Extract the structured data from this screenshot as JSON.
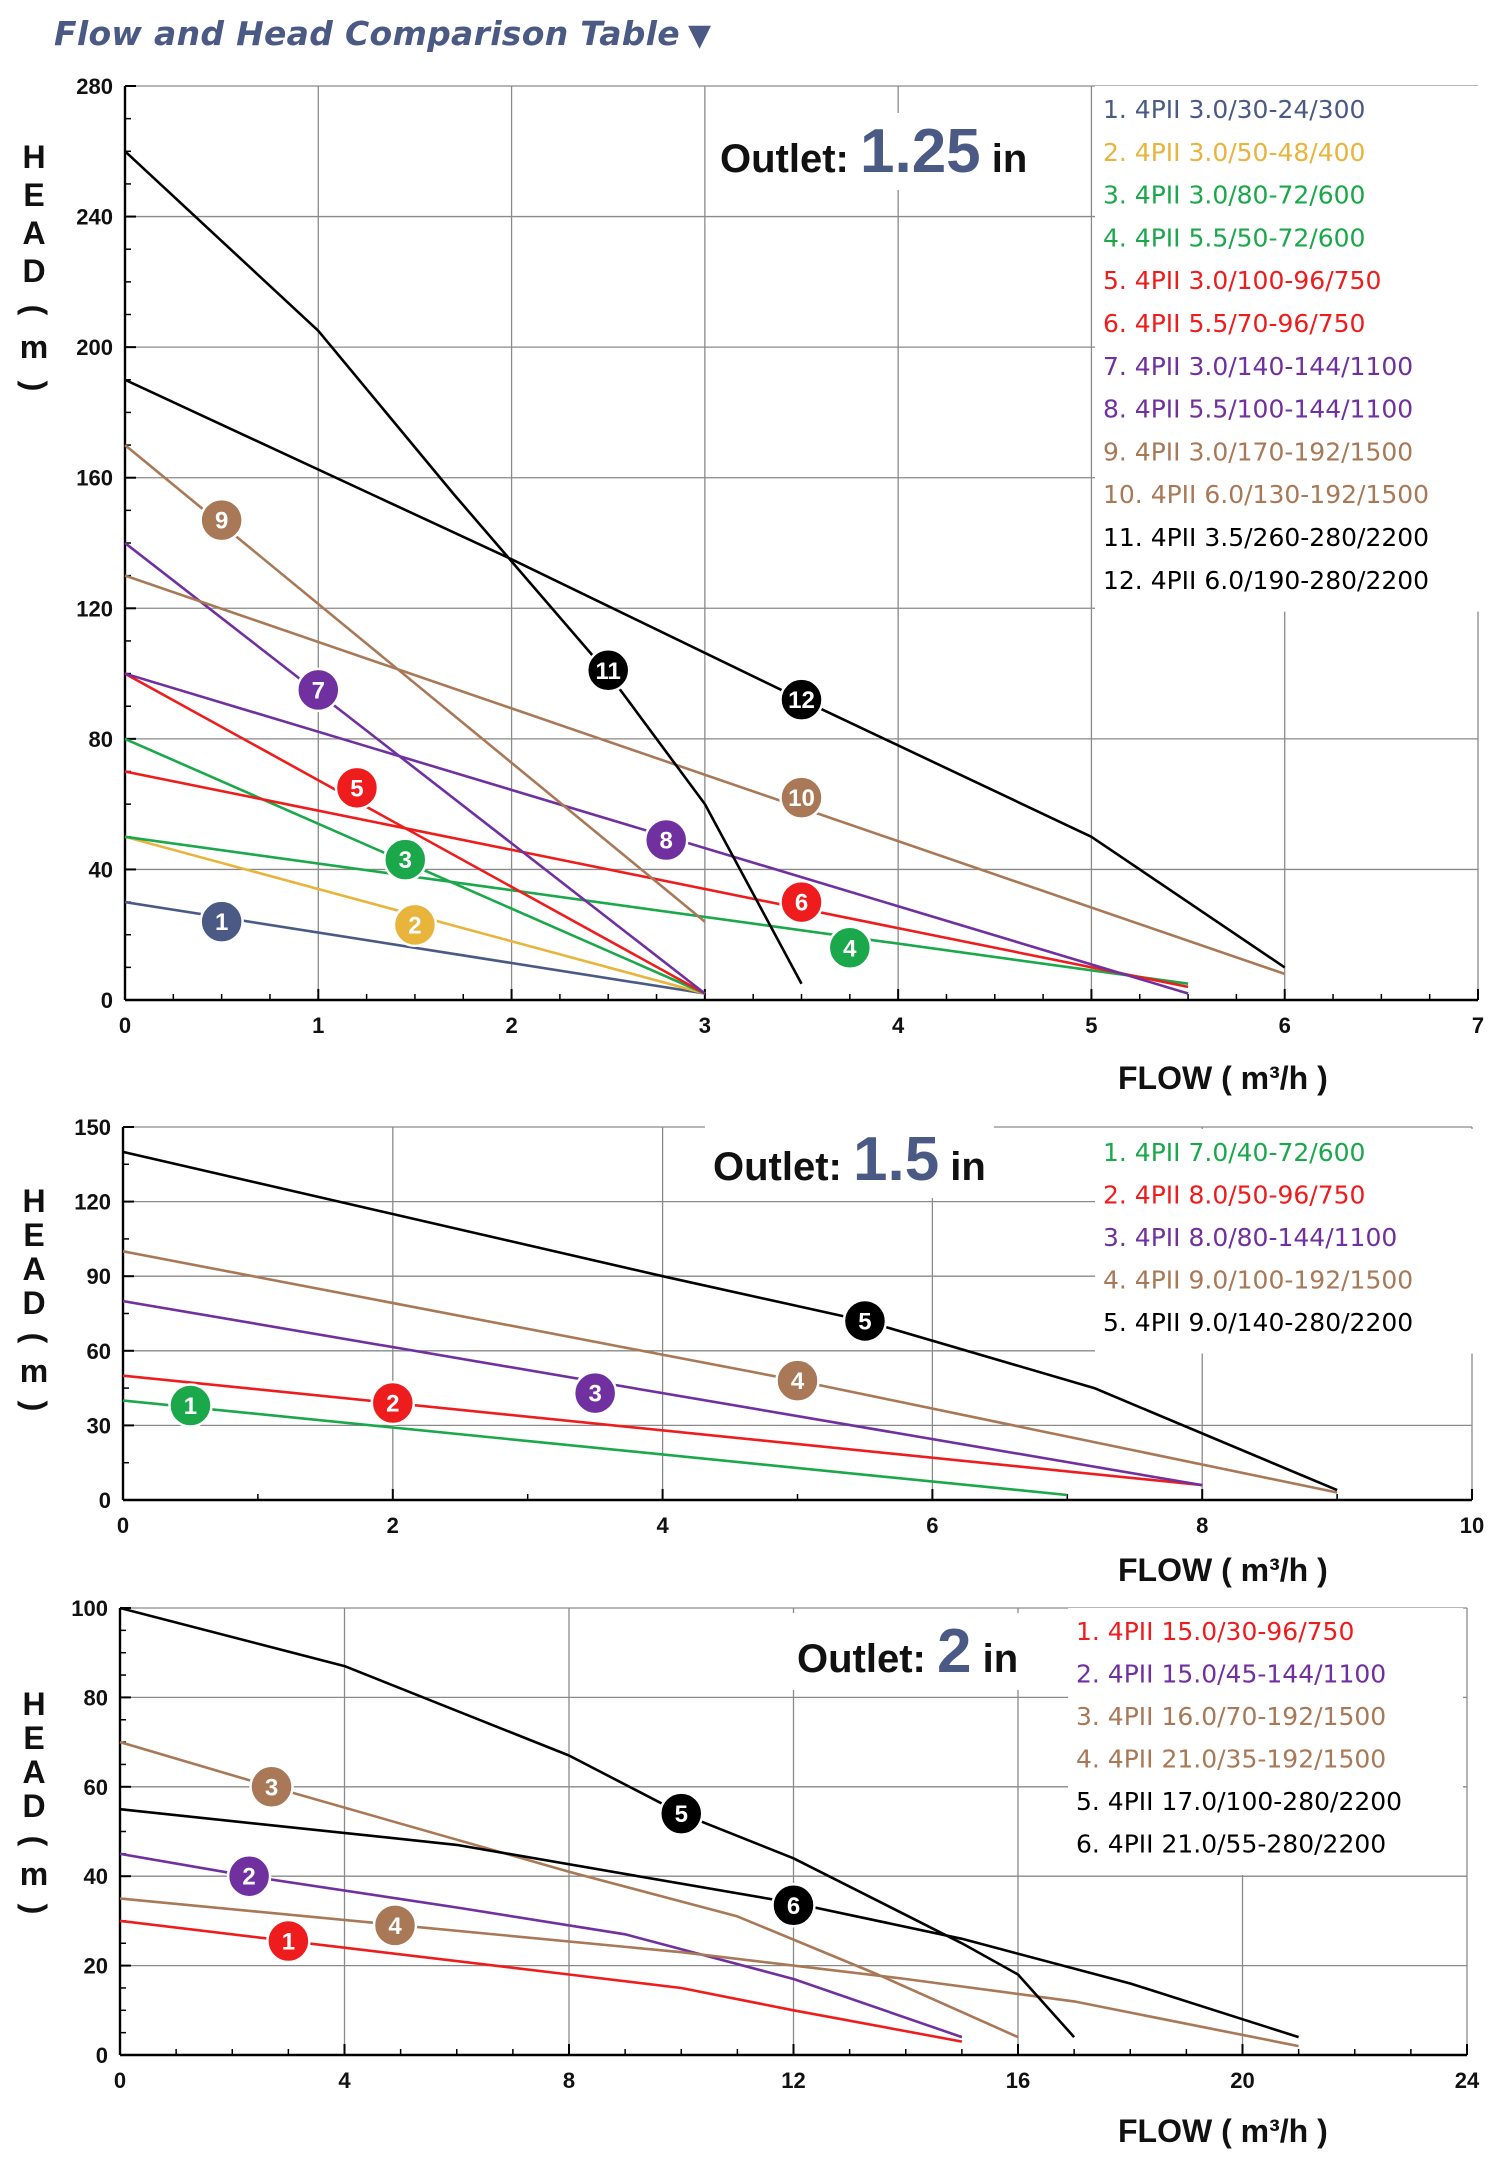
{
  "title": "Flow and Head Comparison Table",
  "title_arrow": "▼",
  "colors": {
    "title": "#4a5a85",
    "navy": "#4a5a85",
    "gold": "#e8b43c",
    "green": "#1aa84a",
    "red": "#ee1c1c",
    "purple": "#7030a0",
    "brown": "#a97856",
    "black": "#000000"
  },
  "chart_data": [
    {
      "type": "line",
      "outlet_label": "Outlet:",
      "outlet_size": "1.25",
      "outlet_unit": "in",
      "ylabel": "HEAD ( m )",
      "xlabel": "FLOW ( m³/h )",
      "xlim": [
        0,
        7
      ],
      "ylim": [
        0,
        280
      ],
      "xticks": [
        0,
        1,
        2,
        3,
        4,
        5,
        6,
        7
      ],
      "yticks": [
        0,
        40,
        80,
        120,
        160,
        200,
        240,
        280
      ],
      "legend_position": "top-right",
      "series": [
        {
          "num": "1",
          "label": "1.  4PII 3.0/30-24/300",
          "color": "#4a5a85",
          "points": [
            [
              0,
              30
            ],
            [
              3,
              2
            ]
          ],
          "marker": [
            0.5,
            24
          ]
        },
        {
          "num": "2",
          "label": "2.  4PII 3.0/50-48/400",
          "color": "#e8b43c",
          "points": [
            [
              0,
              50
            ],
            [
              3,
              2
            ]
          ],
          "marker": [
            1.5,
            23
          ]
        },
        {
          "num": "3",
          "label": "3.  4PII 3.0/80-72/600",
          "color": "#1aa84a",
          "points": [
            [
              0,
              80
            ],
            [
              3,
              2
            ]
          ],
          "marker": [
            1.45,
            43
          ]
        },
        {
          "num": "4",
          "label": "4.  4PII 5.5/50-72/600",
          "color": "#1aa84a",
          "points": [
            [
              0,
              50
            ],
            [
              5.5,
              5
            ]
          ],
          "marker": [
            3.75,
            16
          ]
        },
        {
          "num": "5",
          "label": "5.  4PII 3.0/100-96/750",
          "color": "#ee1c1c",
          "points": [
            [
              0,
              100
            ],
            [
              3,
              2
            ]
          ],
          "marker": [
            1.2,
            65
          ]
        },
        {
          "num": "6",
          "label": "6.  4PII 5.5/70-96/750",
          "color": "#ee1c1c",
          "points": [
            [
              0,
              70
            ],
            [
              5.5,
              4
            ]
          ],
          "marker": [
            3.5,
            30
          ]
        },
        {
          "num": "7",
          "label": "7.  4PII 3.0/140-144/1100",
          "color": "#7030a0",
          "points": [
            [
              0,
              140
            ],
            [
              3,
              2
            ]
          ],
          "marker": [
            1.0,
            95
          ]
        },
        {
          "num": "8",
          "label": "8.  4PII 5.5/100-144/1100",
          "color": "#7030a0",
          "points": [
            [
              0,
              100
            ],
            [
              5.5,
              2
            ]
          ],
          "marker": [
            2.8,
            49
          ]
        },
        {
          "num": "9",
          "label": "9.  4PII 3.0/170-192/1500",
          "color": "#a97856",
          "points": [
            [
              0,
              170
            ],
            [
              3,
              24
            ]
          ],
          "marker": [
            0.5,
            147
          ]
        },
        {
          "num": "10",
          "label": "10.  4PII 6.0/130-192/1500",
          "color": "#a97856",
          "points": [
            [
              0,
              130
            ],
            [
              6,
              8
            ]
          ],
          "marker": [
            3.5,
            62
          ]
        },
        {
          "num": "11",
          "label": "11.  4PII 3.5/260-280/2200",
          "color": "#000000",
          "points": [
            [
              0,
              260
            ],
            [
              1,
              205
            ],
            [
              1.7,
              155
            ],
            [
              2.5,
              100
            ],
            [
              3.0,
              60
            ],
            [
              3.5,
              5
            ]
          ],
          "marker": [
            2.5,
            101
          ]
        },
        {
          "num": "12",
          "label": "12.  4PII 6.0/190-280/2200",
          "color": "#000000",
          "points": [
            [
              0,
              190
            ],
            [
              2,
              135
            ],
            [
              3.5,
              92
            ],
            [
              5,
              50
            ],
            [
              6,
              10
            ]
          ],
          "marker": [
            3.5,
            92
          ]
        }
      ]
    },
    {
      "type": "line",
      "outlet_label": "Outlet:",
      "outlet_size": "1.5",
      "outlet_unit": "in",
      "ylabel": "HEAD ( m )",
      "xlabel": "FLOW ( m³/h )",
      "xlim": [
        0,
        10
      ],
      "ylim": [
        0,
        150
      ],
      "xticks": [
        0,
        2,
        4,
        6,
        8,
        10
      ],
      "yticks": [
        0,
        30,
        60,
        90,
        120,
        150
      ],
      "legend_position": "top-right",
      "series": [
        {
          "num": "1",
          "label": "1.  4PII 7.0/40-72/600",
          "color": "#1aa84a",
          "points": [
            [
              0,
              40
            ],
            [
              7,
              2
            ]
          ],
          "marker": [
            0.5,
            38
          ]
        },
        {
          "num": "2",
          "label": "2.  4PII 8.0/50-96/750",
          "color": "#ee1c1c",
          "points": [
            [
              0,
              50
            ],
            [
              8,
              6
            ]
          ],
          "marker": [
            2.0,
            39
          ]
        },
        {
          "num": "3",
          "label": "3.  4PII 8.0/80-144/1100",
          "color": "#7030a0",
          "points": [
            [
              0,
              80
            ],
            [
              8,
              6
            ]
          ],
          "marker": [
            3.5,
            43
          ]
        },
        {
          "num": "4",
          "label": "4.  4PII 9.0/100-192/1500",
          "color": "#a97856",
          "points": [
            [
              0,
              100
            ],
            [
              5,
              48
            ],
            [
              9,
              3
            ]
          ],
          "marker": [
            5.0,
            48
          ]
        },
        {
          "num": "5",
          "label": "5.  4PII 9.0/140-280/2200",
          "color": "#000000",
          "points": [
            [
              0,
              140
            ],
            [
              4,
              90
            ],
            [
              5.5,
              72
            ],
            [
              7.2,
              45
            ],
            [
              9,
              4
            ]
          ],
          "marker": [
            5.5,
            72
          ]
        }
      ]
    },
    {
      "type": "line",
      "outlet_label": "Outlet:",
      "outlet_size": "2",
      "outlet_unit": "in",
      "ylabel": "HEAD ( m )",
      "xlabel": "FLOW ( m³/h )",
      "xlim": [
        0,
        24
      ],
      "ylim": [
        0,
        100
      ],
      "xticks": [
        0,
        4,
        8,
        12,
        16,
        20,
        24
      ],
      "yticks": [
        0,
        20,
        40,
        60,
        80,
        100
      ],
      "legend_position": "top-right",
      "series": [
        {
          "num": "1",
          "label": "1.  4PII 15.0/30-96/750",
          "color": "#ee1c1c",
          "points": [
            [
              0,
              30
            ],
            [
              4,
              24
            ],
            [
              8,
              18
            ],
            [
              10,
              15
            ],
            [
              12,
              10
            ],
            [
              15,
              3
            ]
          ],
          "marker": [
            3.0,
            25.5
          ]
        },
        {
          "num": "2",
          "label": "2.  4PII 15.0/45-144/1100",
          "color": "#7030a0",
          "points": [
            [
              0,
              45
            ],
            [
              2.3,
              40
            ],
            [
              6,
              33
            ],
            [
              9,
              27
            ],
            [
              12,
              17
            ],
            [
              15,
              4
            ]
          ],
          "marker": [
            2.3,
            40
          ]
        },
        {
          "num": "3",
          "label": "3.  4PII 16.0/70-192/1500",
          "color": "#a97856",
          "points": [
            [
              0,
              70
            ],
            [
              2.7,
              60
            ],
            [
              8,
              41
            ],
            [
              11,
              31
            ],
            [
              13.5,
              18
            ],
            [
              16,
              4
            ]
          ],
          "marker": [
            2.7,
            60
          ]
        },
        {
          "num": "4",
          "label": "4.  4PII 21.0/35-192/1500",
          "color": "#a97856",
          "points": [
            [
              0,
              35
            ],
            [
              5,
              29
            ],
            [
              10,
              23
            ],
            [
              14,
              17
            ],
            [
              17,
              12
            ],
            [
              21,
              2
            ]
          ],
          "marker": [
            4.9,
            29
          ]
        },
        {
          "num": "5",
          "label": "5.  4PII 17.0/100-280/2200",
          "color": "#000000",
          "points": [
            [
              0,
              100
            ],
            [
              4,
              87
            ],
            [
              8,
              67
            ],
            [
              10,
              54
            ],
            [
              12,
              44
            ],
            [
              15,
              25
            ],
            [
              16,
              18
            ],
            [
              17,
              4
            ]
          ],
          "marker": [
            10,
            54
          ]
        },
        {
          "num": "6",
          "label": "6.  4PII 21.0/55-280/2200",
          "color": "#000000",
          "points": [
            [
              0,
              55
            ],
            [
              6,
              47
            ],
            [
              12,
              34
            ],
            [
              15,
              26
            ],
            [
              18,
              16
            ],
            [
              21,
              4
            ]
          ],
          "marker": [
            12,
            33.5
          ]
        }
      ]
    }
  ]
}
